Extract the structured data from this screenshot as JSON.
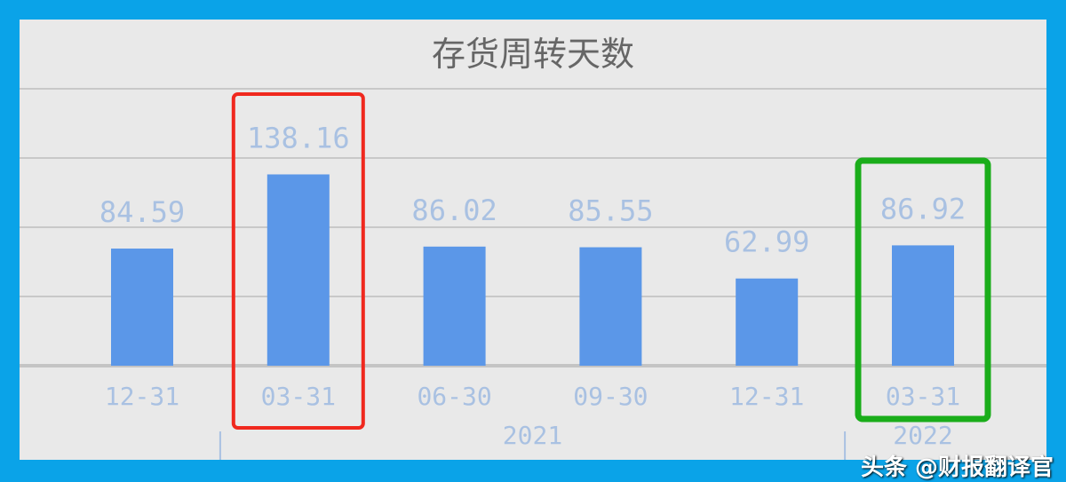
{
  "chart_data": {
    "type": "bar",
    "title": "存货周转天数",
    "categories": [
      "12-31",
      "03-31",
      "06-30",
      "09-30",
      "12-31",
      "03-31"
    ],
    "group_labels": [
      {
        "label": "2021",
        "from": 1,
        "to": 4
      },
      {
        "label": "2022",
        "from": 5,
        "to": 5
      }
    ],
    "values": [
      84.59,
      138.16,
      86.02,
      85.55,
      62.99,
      86.92
    ],
    "data_labels": [
      "84.59",
      "138.16",
      "86.02",
      "85.55",
      "62.99",
      "86.92"
    ],
    "ylim": [
      0,
      200
    ],
    "grid": true,
    "bar_color": "#5b97e8",
    "label_color": "#a9c1e2",
    "highlights": [
      {
        "index": 1,
        "color": "#f0281e"
      },
      {
        "index": 5,
        "color": "#1aad1a"
      }
    ]
  },
  "watermark": "头条 @财报翻译官"
}
